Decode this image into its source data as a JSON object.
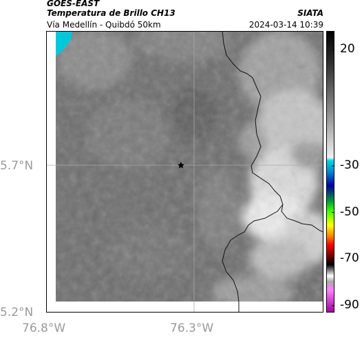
{
  "header": {
    "satellite": "GOES-EAST",
    "product": "Temperatura de Brillo CH13",
    "region": "Vía Medellín - Quibdó 50km",
    "agency": "SIATA",
    "datetime": "2024-03-14 10:39"
  },
  "axes": {
    "lat_labels": [
      "5.7°N",
      "5.2°N"
    ],
    "lon_labels": [
      "76.8°W",
      "76.3°W"
    ]
  },
  "colorbar": {
    "tick_labels": [
      "20",
      "-30",
      "-50",
      "-70",
      "-90"
    ],
    "ticks": [
      20,
      -30,
      -50,
      -70,
      -90
    ],
    "range": [
      28,
      -93
    ]
  },
  "marker": {
    "icon": "star-icon"
  }
}
